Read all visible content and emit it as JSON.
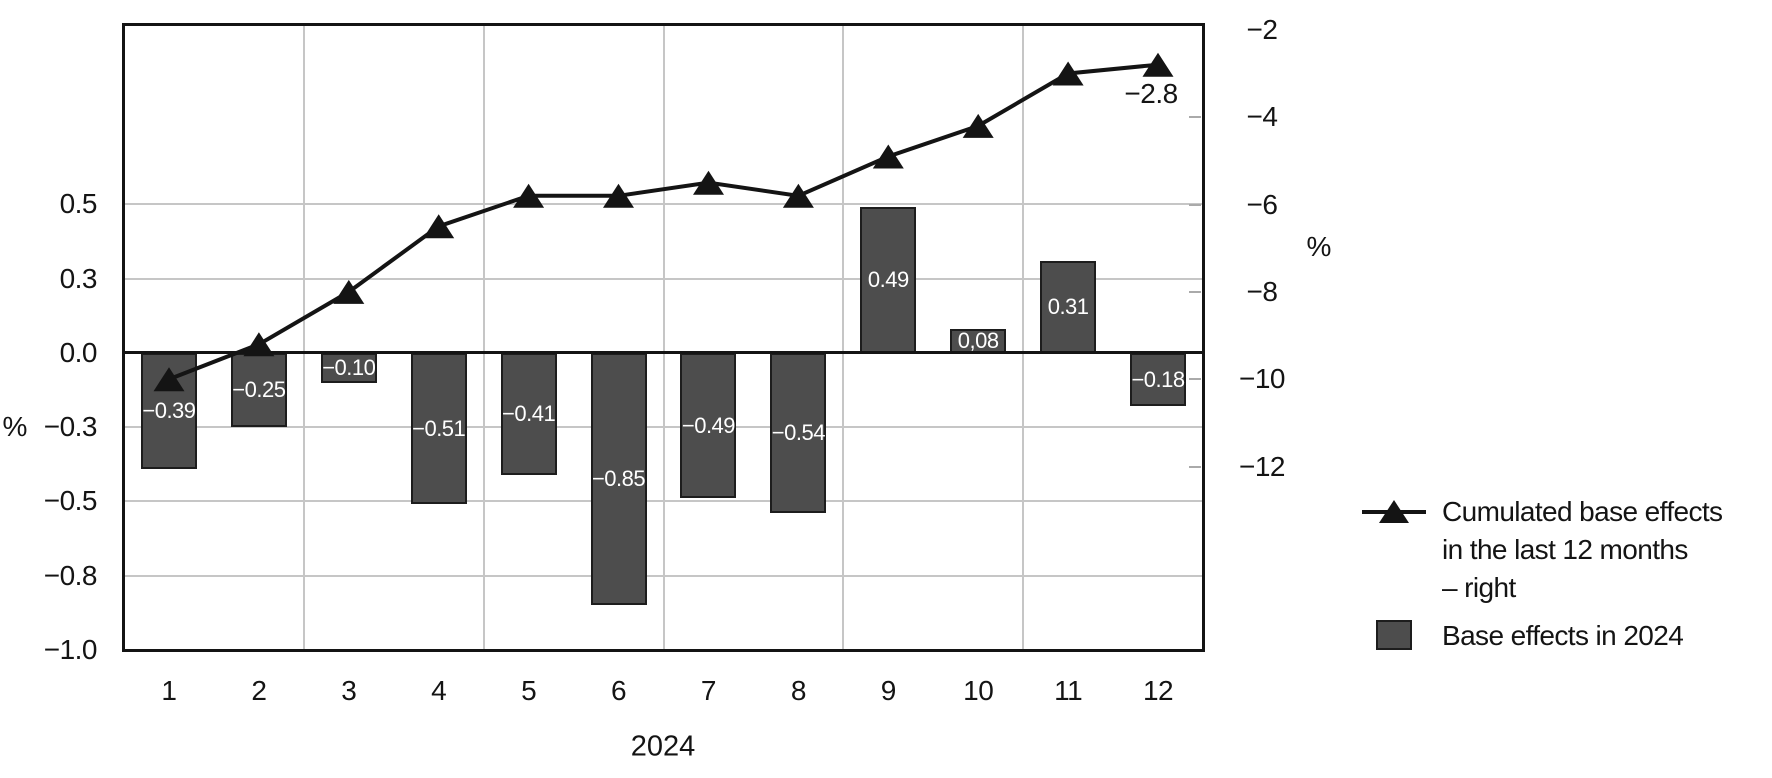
{
  "chart_data": {
    "type": "combo",
    "categories": [
      "1",
      "2",
      "3",
      "4",
      "5",
      "6",
      "7",
      "8",
      "9",
      "10",
      "11",
      "12"
    ],
    "xlabel": "2024",
    "left_axis": {
      "title": "%",
      "range": [
        -1.0,
        1.104
      ],
      "ticks": [
        {
          "label": "0.5",
          "value": 0.5,
          "grid": true
        },
        {
          "label": "0.3",
          "value": 0.25,
          "grid": true
        },
        {
          "label": "0.0",
          "value": 0.0,
          "grid": false
        },
        {
          "label": "−0.3",
          "value": -0.25,
          "grid": true
        },
        {
          "label": "−0.5",
          "value": -0.5,
          "grid": true
        },
        {
          "label": "−0.8",
          "value": -0.75,
          "grid": true
        },
        {
          "label": "−1.0",
          "value": -1.0,
          "grid": false
        }
      ]
    },
    "right_axis": {
      "title": "%",
      "range": [
        -16.2,
        -1.89
      ],
      "ticks": [
        {
          "label": "−2",
          "value": -2
        },
        {
          "label": "−4",
          "value": -4
        },
        {
          "label": "−6",
          "value": -6
        },
        {
          "label": "−8",
          "value": -8
        },
        {
          "label": "−10",
          "value": -10
        },
        {
          "label": "−12",
          "value": -12
        }
      ]
    },
    "x_gridlines_after": [
      2,
      4,
      6,
      8,
      10
    ],
    "series": [
      {
        "name": "Base effects in 2024",
        "type": "bar",
        "axis": "left",
        "values": [
          -0.39,
          -0.25,
          -0.1,
          -0.51,
          -0.41,
          -0.85,
          -0.49,
          -0.54,
          0.49,
          0.08,
          0.31,
          -0.18
        ],
        "value_labels": [
          "−0.39",
          "−0.25",
          "−0.10",
          "−0.51",
          "−0.41",
          "−0.85",
          "−0.49",
          "−0.54",
          "0.49",
          "0,08",
          "0.31",
          "−0.18"
        ]
      },
      {
        "name": "Cumulated base effects in the last 12 months – right",
        "type": "line",
        "axis": "right",
        "values": [
          -10.0,
          -9.2,
          -8.0,
          -6.5,
          -5.8,
          -5.8,
          -5.5,
          -5.8,
          -4.9,
          -4.2,
          -3.0,
          -2.8
        ],
        "end_label": "−2.8"
      }
    ]
  },
  "legend": {
    "entries": [
      {
        "marker": "line-triangle",
        "lines": [
          "Cumulated base effects",
          "in the last 12 months",
          "– right"
        ]
      },
      {
        "marker": "bar-swatch",
        "lines": [
          "Base effects in 2024"
        ]
      }
    ]
  },
  "colors": {
    "bar": "#4d4d4d",
    "line": "#141414",
    "grid": "#c6c6c6",
    "axis": "#141414",
    "bar_label": "#ffffff",
    "background": "#ffffff"
  }
}
